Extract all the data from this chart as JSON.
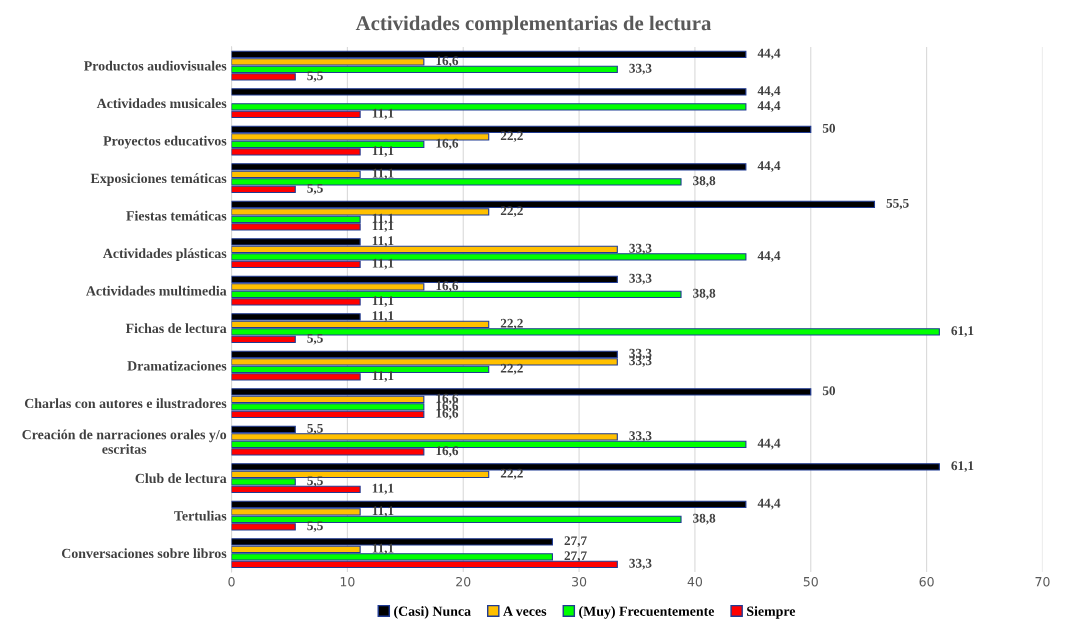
{
  "chart_data": {
    "type": "bar",
    "orientation": "horizontal",
    "title": "Actividades complementarias de lectura",
    "categories": [
      "Productos audiovisuales",
      "Actividades musicales",
      "Proyectos educativos",
      "Exposiciones temáticas",
      "Fiestas temáticas",
      "Actividades plásticas",
      "Actividades multimedia",
      "Fichas de lectura",
      "Dramatizaciones",
      "Charlas con autores e ilustradores",
      "Creación de narraciones orales y/o escritas",
      "Club de lectura",
      "Tertulias",
      "Conversaciones sobre libros"
    ],
    "series": [
      {
        "name": "(Casi) Nunca",
        "color": "#000000",
        "values": [
          44.4,
          44.4,
          50,
          44.4,
          55.5,
          11.1,
          33.3,
          11.1,
          33.3,
          50,
          5.5,
          61.1,
          44.4,
          27.7
        ],
        "value_labels": [
          "44,4",
          "44,4",
          "50",
          "44,4",
          "55,5",
          "11,1",
          "33,3",
          "11,1",
          "33,3",
          "50",
          "5,5",
          "61,1",
          "44,4",
          "27,7"
        ]
      },
      {
        "name": "A veces",
        "color": "#ffc000",
        "values": [
          16.6,
          null,
          22.2,
          11.1,
          22.2,
          33.3,
          16.6,
          22.2,
          33.3,
          16.6,
          33.3,
          22.2,
          11.1,
          11.1
        ],
        "value_labels": [
          "16,6",
          null,
          "22,2",
          "11,1",
          "22,2",
          "33,3",
          "16,6",
          "22,2",
          "33,3",
          "16,6",
          "33,3",
          "22,2",
          "11,1",
          "11,1"
        ]
      },
      {
        "name": "(Muy) Frecuentemente",
        "color": "#00ff00",
        "values": [
          33.3,
          44.4,
          16.6,
          38.8,
          11.1,
          44.4,
          38.8,
          61.1,
          22.2,
          16.6,
          44.4,
          5.5,
          38.8,
          27.7
        ],
        "value_labels": [
          "33,3",
          "44,4",
          "16,6",
          "38,8",
          "11,1",
          "44,4",
          "38,8",
          "61,1",
          "22,2",
          "16,6",
          "44,4",
          "5,5",
          "38,8",
          "27,7"
        ]
      },
      {
        "name": "Siempre",
        "color": "#ff0000",
        "values": [
          5.5,
          11.1,
          11.1,
          5.5,
          11.1,
          11.1,
          11.1,
          5.5,
          11.1,
          16.6,
          16.6,
          11.1,
          5.5,
          33.3
        ],
        "value_labels": [
          "5,5",
          "11,1",
          "11,1",
          "5,5",
          "11,1",
          "11,1",
          "11,1",
          "5,5",
          "11,1",
          "16,6",
          "16,6",
          "11,1",
          "5,5",
          "33,3"
        ]
      }
    ],
    "xlim": [
      0,
      70
    ],
    "xticks": [
      0,
      10,
      20,
      30,
      40,
      50,
      60,
      70
    ],
    "grid": "x",
    "legend": "bottom"
  }
}
